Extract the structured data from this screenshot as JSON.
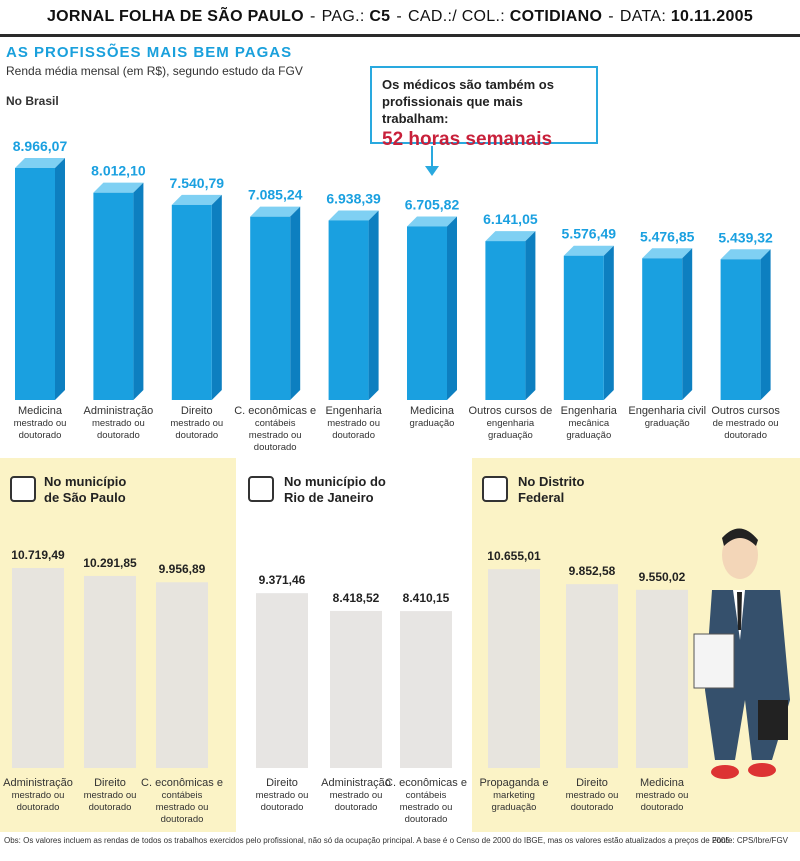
{
  "header": {
    "paper": "JORNAL FOLHA DE SÃO PAULO",
    "pag_label": "PAG.:",
    "pag": "C5",
    "cad_label": "CAD.:/ COL.:",
    "cad": "COTIDIANO",
    "date_label": "DATA:",
    "date": "10.11.2005"
  },
  "title": "AS PROFISSÕES MAIS BEM PAGAS",
  "subtitle": "Renda média mensal (em R$), segundo estudo da FGV",
  "callout": {
    "line1": "Os médicos são também os",
    "line2": "profissionais que mais trabalham:",
    "highlight": "52 horas semanais"
  },
  "colors": {
    "bar": "#1aa0e0",
    "bar_top": "#7fd0f3",
    "bar_side": "#0d7fc0",
    "pale_bar": "#e4e2e0",
    "panel_bg": "#fbf3c6",
    "accent": "#c8203a"
  },
  "icons": {
    "sao_paulo": "building-icon",
    "rio": "sugarloaf-icon",
    "df": "congress-icon"
  },
  "chart_data": [
    {
      "type": "bar",
      "region": "No Brasil",
      "categories": [
        [
          "Medicina",
          "mestrado ou",
          "doutorado"
        ],
        [
          "Administração",
          "mestrado ou",
          "doutorado"
        ],
        [
          "Direito",
          "mestrado ou",
          "doutorado"
        ],
        [
          "C. econômicas e",
          "contábeis",
          "mestrado ou",
          "doutorado"
        ],
        [
          "Engenharia",
          "mestrado ou",
          "doutorado"
        ],
        [
          "Medicina",
          "graduação"
        ],
        [
          "Outros cursos de",
          "engenharia",
          "graduação"
        ],
        [
          "Engenharia",
          "mecânica",
          "graduação"
        ],
        [
          "Engenharia civil",
          "graduação"
        ],
        [
          "Outros cursos",
          "de mestrado ou",
          "doutorado"
        ]
      ],
      "values": [
        8966.07,
        8012.1,
        7540.79,
        7085.24,
        6938.39,
        6705.82,
        6141.05,
        5576.49,
        5476.85,
        5439.32
      ],
      "value_labels": [
        "8.966,07",
        "8.012,10",
        "7.540,79",
        "7.085,24",
        "6.938,39",
        "6.705,82",
        "6.141,05",
        "5.576,49",
        "5.476,85",
        "5.439,32"
      ]
    },
    {
      "type": "bar",
      "region": [
        "No município",
        "de São Paulo"
      ],
      "categories": [
        [
          "Administração",
          "mestrado ou",
          "doutorado"
        ],
        [
          "Direito",
          "mestrado ou",
          "doutorado"
        ],
        [
          "C. econômicas e",
          "contábeis",
          "mestrado ou",
          "doutorado"
        ]
      ],
      "values": [
        10719.49,
        10291.85,
        9956.89
      ],
      "value_labels": [
        "10.719,49",
        "10.291,85",
        "9.956,89"
      ]
    },
    {
      "type": "bar",
      "region": [
        "No município do",
        "Rio de Janeiro"
      ],
      "categories": [
        [
          "Direito",
          "mestrado ou",
          "doutorado"
        ],
        [
          "Administração",
          "mestrado ou",
          "doutorado"
        ],
        [
          "C. econômicas e",
          "contábeis",
          "mestrado ou",
          "doutorado"
        ]
      ],
      "values": [
        9371.46,
        8418.52,
        8410.15
      ],
      "value_labels": [
        "9.371,46",
        "8.418,52",
        "8.410,15"
      ]
    },
    {
      "type": "bar",
      "region": [
        "No Distrito",
        "Federal"
      ],
      "categories": [
        [
          "Propaganda e",
          "marketing",
          "graduação"
        ],
        [
          "Direito",
          "mestrado ou",
          "doutorado"
        ],
        [
          "Medicina",
          "mestrado ou",
          "doutorado"
        ]
      ],
      "values": [
        10655.01,
        9852.58,
        9550.02
      ],
      "value_labels": [
        "10.655,01",
        "9.852,58",
        "9.550,02"
      ]
    }
  ],
  "footnote": "Obs: Os valores incluem as rendas de todos os trabalhos exercidos pelo profissional, não só da ocupação principal. A base é o Censo de 2000 do IBGE, mas os valores estão atualizados a preços de 2005",
  "source": "Fonte: CPS/Ibre/FGV"
}
